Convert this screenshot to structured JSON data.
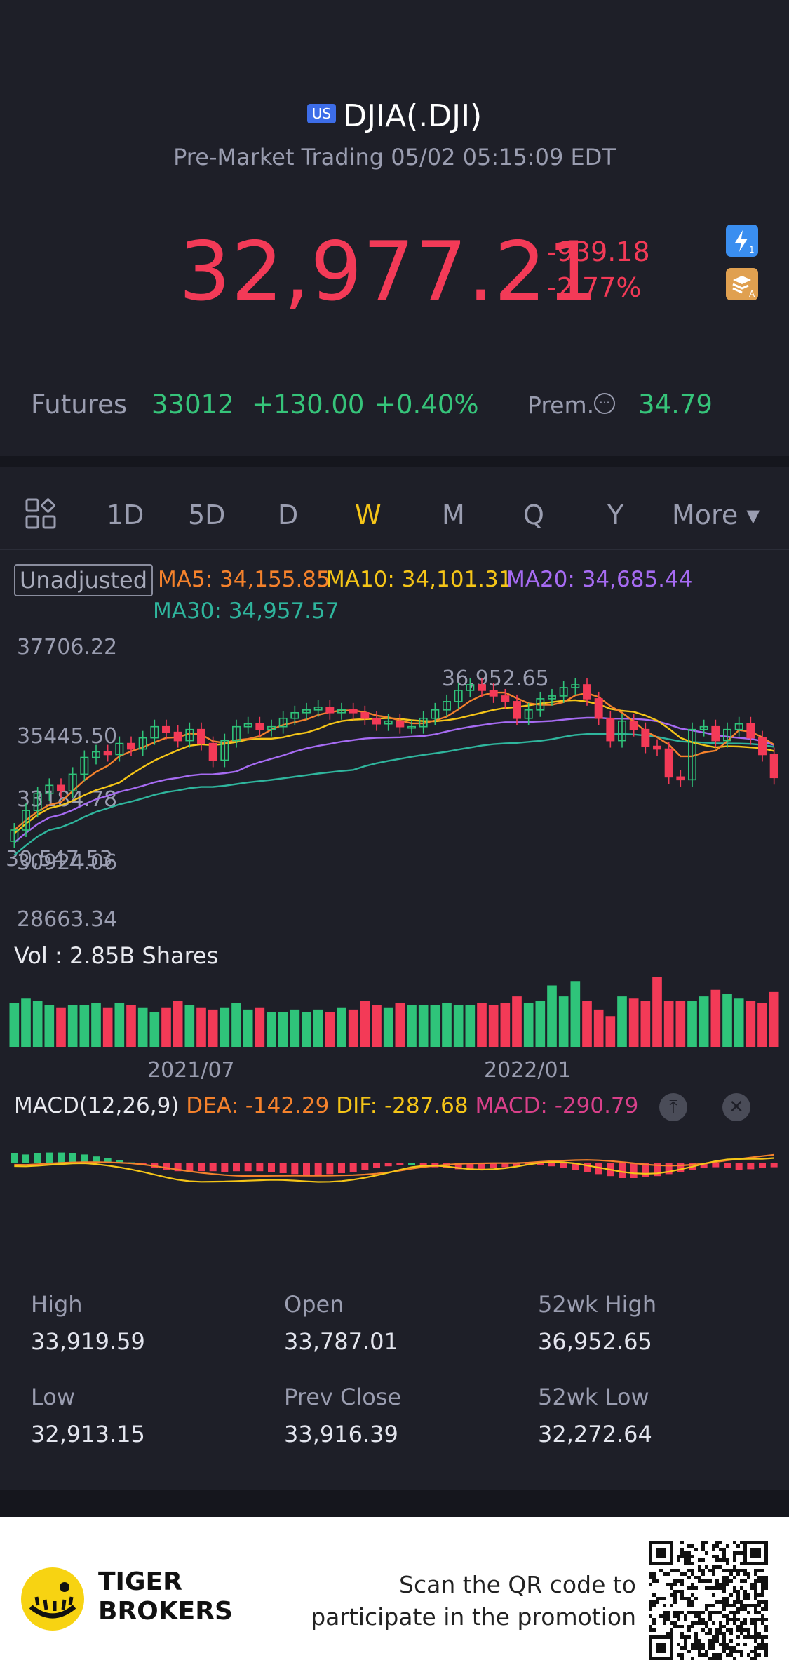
{
  "header": {
    "market_badge": "US",
    "symbol": "DJIA(.DJI)",
    "session": "Pre-Market Trading 05/02 05:15:09 EDT",
    "price": "32,977.21",
    "change": "-939.18",
    "change_pct": "-2.77%",
    "icons": [
      "lightning-icon",
      "stack-icon"
    ]
  },
  "futures": {
    "label": "Futures",
    "price": "33012",
    "change": "+130.00",
    "change_pct": "+0.40%",
    "premium_label": "Prem.",
    "premium_value": "34.79"
  },
  "tabs": [
    {
      "label": "1D"
    },
    {
      "label": "5D"
    },
    {
      "label": "D"
    },
    {
      "label": "W"
    },
    {
      "label": "M"
    },
    {
      "label": "Q"
    },
    {
      "label": "Y"
    },
    {
      "label": "More ▾"
    }
  ],
  "active_tab": "W",
  "chart": {
    "adjust_label": "Unadjusted",
    "ma5": "MA5: 34,155.85",
    "ma10": "MA10: 34,101.31",
    "ma20": "MA20: 34,685.44",
    "ma30": "MA30: 34,957.57",
    "y_labels": [
      "37706.22",
      "35445.50",
      "33184.78",
      "30924.06",
      "28663.34"
    ],
    "high_marker": "36,952.65",
    "low_marker": "30,547.53",
    "vol_label": "Vol  : 2.85B Shares",
    "x_labels": [
      "2021/07",
      "2022/01"
    ],
    "macd_label": "MACD(12,26,9)",
    "dea": "DEA: -142.29",
    "dif": "DIF: -287.68",
    "macd": "MACD: -290.79",
    "colors": {
      "up": "#2fc47a",
      "down": "#f33a57",
      "ma5": "#f5822c",
      "ma10": "#f5c518",
      "ma20": "#a66bf2",
      "ma30": "#2fb59d"
    }
  },
  "chart_data": {
    "type": "candlestick",
    "title": "DJIA(.DJI) weekly",
    "ylim": [
      28663.34,
      37706.22
    ],
    "x_ticks": [
      "2021/07",
      "2022/01"
    ],
    "closes": [
      31100,
      31800,
      32400,
      32700,
      32500,
      33100,
      33700,
      33900,
      33800,
      34200,
      34000,
      34400,
      34800,
      34600,
      34300,
      34700,
      34200,
      33600,
      34300,
      34800,
      34900,
      34700,
      34800,
      35100,
      35300,
      35400,
      35500,
      35300,
      35400,
      35300,
      35100,
      34900,
      35000,
      34800,
      34800,
      35100,
      35400,
      35700,
      36100,
      36300,
      36100,
      35900,
      35700,
      35100,
      35400,
      35800,
      35900,
      36200,
      36300,
      35800,
      35100,
      34300,
      35000,
      34700,
      34100,
      34000,
      33000,
      32900,
      34700,
      34800,
      34300,
      34700,
      34900,
      34400,
      33800,
      32977
    ],
    "volumes": [
      1.0,
      1.1,
      1.05,
      0.95,
      0.9,
      0.95,
      0.95,
      1.0,
      0.9,
      1.0,
      0.95,
      0.9,
      0.8,
      0.9,
      1.05,
      0.95,
      0.9,
      0.85,
      0.9,
      1.0,
      0.85,
      0.9,
      0.8,
      0.8,
      0.85,
      0.8,
      0.85,
      0.8,
      0.9,
      0.85,
      1.05,
      0.95,
      0.9,
      1.0,
      0.95,
      0.95,
      0.95,
      1.0,
      0.95,
      0.95,
      1.0,
      0.95,
      1.0,
      1.15,
      1.0,
      1.05,
      1.4,
      1.15,
      1.5,
      1.05,
      0.85,
      0.7,
      1.15,
      1.1,
      1.05,
      1.6,
      1.05,
      1.05,
      1.05,
      1.15,
      1.3,
      1.2,
      1.1,
      1.05,
      1.0,
      1.25
    ],
    "macd_hist": [
      20,
      18,
      20,
      22,
      22,
      20,
      18,
      14,
      10,
      6,
      2,
      -4,
      -10,
      -14,
      -16,
      -16,
      -16,
      -16,
      -18,
      -16,
      -16,
      -16,
      -18,
      -20,
      -22,
      -24,
      -24,
      -22,
      -20,
      -18,
      -14,
      -10,
      -6,
      -2,
      0,
      -4,
      -8,
      -10,
      -12,
      -14,
      -14,
      -10,
      -8,
      -6,
      -4,
      -2,
      -6,
      -10,
      -14,
      -18,
      -22,
      -26,
      -30,
      -30,
      -28,
      -26,
      -22,
      -18,
      -14,
      -10,
      -8,
      -10,
      -14,
      -12,
      -10,
      -8
    ]
  },
  "stats": {
    "high_label": "High",
    "high": "33,919.59",
    "open_label": "Open",
    "open": "33,787.01",
    "wk52_high_label": "52wk High",
    "wk52_high": "36,952.65",
    "low_label": "Low",
    "low": "32,913.15",
    "prev_close_label": "Prev Close",
    "prev_close": "33,916.39",
    "wk52_low_label": "52wk Low",
    "wk52_low": "32,272.64"
  },
  "footer": {
    "brand_line1": "TIGER",
    "brand_line2": "BROKERS",
    "promo_line1": "Scan the QR code to",
    "promo_line2": "participate in the promotion"
  }
}
